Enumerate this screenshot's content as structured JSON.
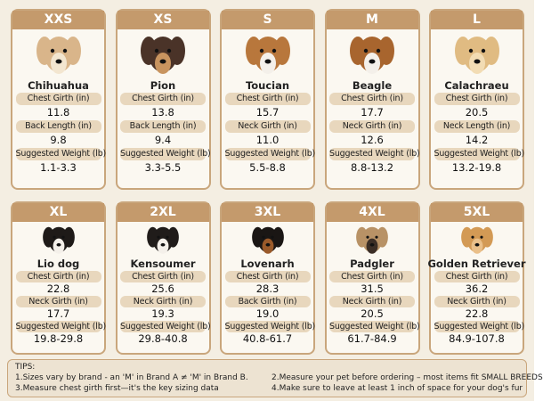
{
  "cards": [
    {
      "size": "XXS",
      "breed": "Chihuahua",
      "rows": [
        {
          "label": "Chest Girth (in)",
          "value": "11.8"
        },
        {
          "label": "Back Length (in)",
          "value": "9.8"
        },
        {
          "label": "Suggested Weight (lb)",
          "value": "1.1-3.3"
        }
      ]
    },
    {
      "size": "XS",
      "breed": "Pion",
      "rows": [
        {
          "label": "Chest Girth (in)",
          "value": "13.8"
        },
        {
          "label": "Back Length (in)",
          "value": "9.4"
        },
        {
          "label": "Suggested Weight (lb)",
          "value": "3.3-5.5"
        }
      ]
    },
    {
      "size": "S",
      "breed": "Toucian",
      "rows": [
        {
          "label": "Chest Girth (in)",
          "value": "15.7"
        },
        {
          "label": "Neck Girth (in)",
          "value": "11.0"
        },
        {
          "label": "Suggested Weight (lb)",
          "value": "5.5-8.8"
        }
      ]
    },
    {
      "size": "M",
      "breed": "Beagle",
      "rows": [
        {
          "label": "Chest Girth (in)",
          "value": "17.7"
        },
        {
          "label": "Neck Girth (in)",
          "value": "12.6"
        },
        {
          "label": "Suggested Weight (lb)",
          "value": "8.8-13.2"
        }
      ]
    },
    {
      "size": "L",
      "breed": "Calachraeu",
      "rows": [
        {
          "label": "Chest Girth (in)",
          "value": "20.5"
        },
        {
          "label": "Neck Length (in)",
          "value": "14.2"
        },
        {
          "label": "Suggested Weight (lb)",
          "value": "13.2-19.8"
        }
      ]
    },
    {
      "size": "XL",
      "breed": "Lio dog",
      "rows": [
        {
          "label": "Chest Girth (in)",
          "value": "22.8"
        },
        {
          "label": "Neck Girth (in)",
          "value": "17.7"
        },
        {
          "label": "Suggested Weight (lb)",
          "value": "19.8-29.8"
        }
      ]
    },
    {
      "size": "2XL",
      "breed": "Kensoumer",
      "rows": [
        {
          "label": "Chest Girth (in)",
          "value": "25.6"
        },
        {
          "label": "Neck Girth (in)",
          "value": "19.3"
        },
        {
          "label": "Suggested Weight (lb)",
          "value": "29.8-40.8"
        }
      ]
    },
    {
      "size": "3XL",
      "breed": "Lovenarh",
      "rows": [
        {
          "label": "Chest Girth (in)",
          "value": "28.3"
        },
        {
          "label": "Back Girth (in)",
          "value": "19.0"
        },
        {
          "label": "Suggested Weight (lb)",
          "value": "40.8-61.7"
        }
      ]
    },
    {
      "size": "4XL",
      "breed": "Padgler",
      "rows": [
        {
          "label": "Chest Girth (in)",
          "value": "31.5"
        },
        {
          "label": "Neck Girth (in)",
          "value": "20.5"
        },
        {
          "label": "Suggested Weight (lb)",
          "value": "61.7-84.9"
        }
      ]
    },
    {
      "size": "5XL",
      "breed": "Golden Retriever",
      "rows": [
        {
          "label": "Chest Girth (in)",
          "value": "36.2"
        },
        {
          "label": "Neck Girth (in)",
          "value": "22.8"
        },
        {
          "label": "Suggested Weight (lb)",
          "value": "84.9-107.8"
        }
      ]
    }
  ],
  "tips": {
    "title": "TIPS:",
    "items": [
      "1.Sizes vary by brand - an 'M' in Brand A ≠ 'M' in Brand B.",
      "2.Measure your pet before ordering – most items fit SMALL BREEDS",
      "3.Measure chest girth first—it's the key sizing data",
      "4.Make sure to leave at least 1 inch of space for your dog's fur"
    ]
  }
}
